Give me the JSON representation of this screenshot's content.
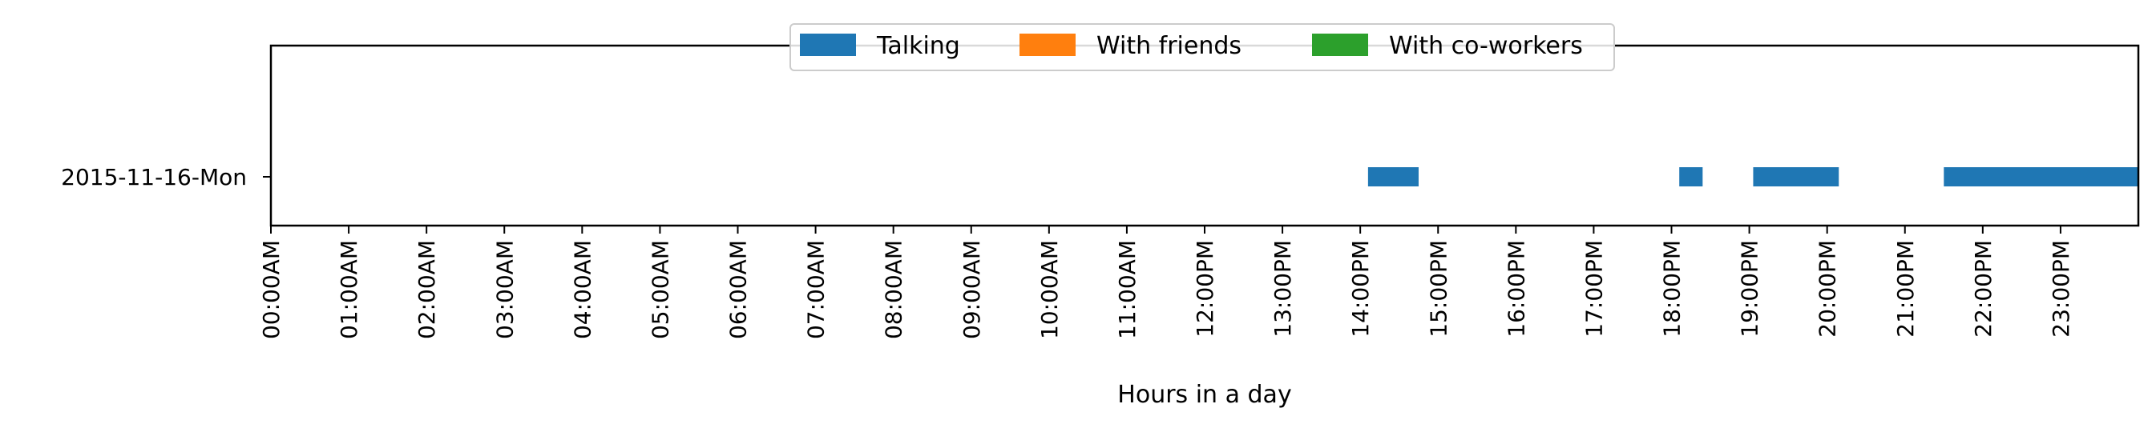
{
  "chart_data": {
    "type": "bar",
    "orientation": "horizontal-timeline",
    "xlabel": "Hours in a day",
    "ylabel": "",
    "xlim": [
      0,
      24
    ],
    "x_ticks": [
      "00:00AM",
      "01:00AM",
      "02:00AM",
      "03:00AM",
      "04:00AM",
      "05:00AM",
      "06:00AM",
      "07:00AM",
      "08:00AM",
      "09:00AM",
      "10:00AM",
      "11:00AM",
      "12:00PM",
      "13:00PM",
      "14:00PM",
      "15:00PM",
      "16:00PM",
      "17:00PM",
      "18:00PM",
      "19:00PM",
      "20:00PM",
      "21:00PM",
      "22:00PM",
      "23:00PM"
    ],
    "categories": [
      "2015-11-16-Mon"
    ],
    "legend": {
      "placement": "upper-center",
      "entries": [
        {
          "name": "Talking",
          "color": "#1f77b4"
        },
        {
          "name": "With friends",
          "color": "#ff7f0e"
        },
        {
          "name": "With co-workers",
          "color": "#2ca02c"
        }
      ]
    },
    "series": [
      {
        "name": "Talking",
        "color": "#1f77b4",
        "category": "2015-11-16-Mon",
        "intervals": [
          [
            14.1,
            14.75
          ],
          [
            18.1,
            18.4
          ],
          [
            19.05,
            20.15
          ],
          [
            21.5,
            24.0
          ]
        ]
      },
      {
        "name": "With friends",
        "color": "#ff7f0e",
        "category": "2015-11-16-Mon",
        "intervals": []
      },
      {
        "name": "With co-workers",
        "color": "#2ca02c",
        "category": "2015-11-16-Mon",
        "intervals": []
      }
    ],
    "grid": false
  }
}
